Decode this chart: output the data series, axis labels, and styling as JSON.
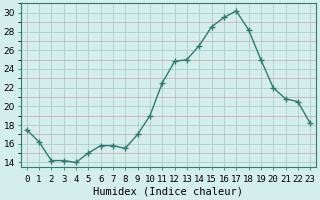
{
  "x": [
    0,
    1,
    2,
    3,
    4,
    5,
    6,
    7,
    8,
    9,
    10,
    11,
    12,
    13,
    14,
    15,
    16,
    17,
    18,
    19,
    20,
    21,
    22,
    23
  ],
  "y": [
    17.5,
    16.2,
    14.2,
    14.2,
    14.0,
    15.0,
    15.8,
    15.8,
    15.5,
    17.0,
    19.0,
    22.5,
    24.8,
    25.0,
    26.5,
    28.5,
    29.5,
    30.2,
    28.2,
    25.0,
    22.0,
    20.8,
    20.5,
    18.2
  ],
  "line_color": "#2d7d6e",
  "marker": "+",
  "marker_size": 4,
  "marker_lw": 1.0,
  "bg_color": "#d4eeeb",
  "grid_major_color": "#b0ccc9",
  "grid_minor_color": "#c8a8a8",
  "xlabel": "Humidex (Indice chaleur)",
  "xlim": [
    -0.5,
    23.5
  ],
  "ylim": [
    13.5,
    31.0
  ],
  "yticks": [
    14,
    16,
    18,
    20,
    22,
    24,
    26,
    28,
    30
  ],
  "xtick_labels": [
    "0",
    "1",
    "2",
    "3",
    "4",
    "5",
    "6",
    "7",
    "8",
    "9",
    "10",
    "11",
    "12",
    "13",
    "14",
    "15",
    "16",
    "17",
    "18",
    "19",
    "20",
    "21",
    "22",
    "23"
  ],
  "tick_fontsize": 6.5,
  "xlabel_fontsize": 7.5
}
